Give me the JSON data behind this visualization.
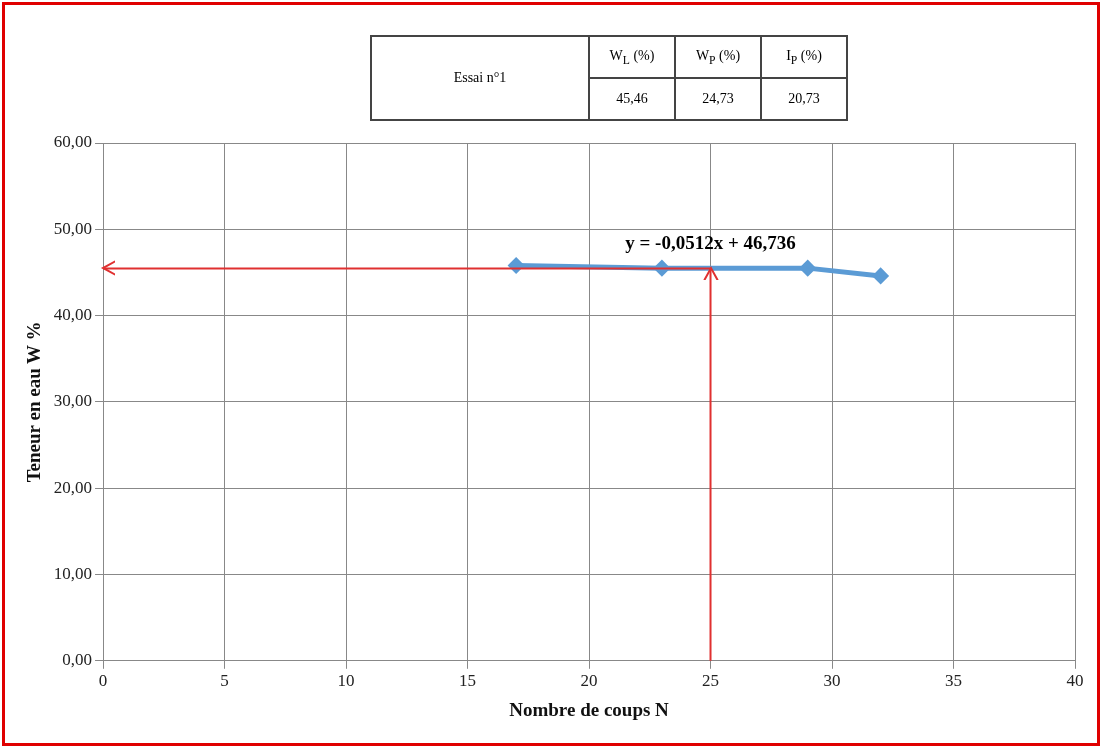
{
  "chart_data": {
    "type": "line",
    "xlabel": "Nombre de coups N",
    "ylabel": "Teneur en eau W %",
    "x": [
      17,
      23,
      29,
      32
    ],
    "series": [
      {
        "color": "#5b9bd5",
        "values": [
          45.8,
          45.5,
          45.5,
          44.6
        ]
      }
    ],
    "marker": "diamond",
    "xlim": [
      0,
      40
    ],
    "xticks": [
      0,
      5,
      10,
      15,
      20,
      25,
      30,
      35,
      40
    ],
    "ylim": [
      0,
      60
    ],
    "yticks": [
      {
        "value": 0,
        "label": "0,00"
      },
      {
        "value": 10,
        "label": "10,00"
      },
      {
        "value": 20,
        "label": "20,00"
      },
      {
        "value": 30,
        "label": "30,00"
      },
      {
        "value": 40,
        "label": "40,00"
      },
      {
        "value": 50,
        "label": "50,00"
      },
      {
        "value": 60,
        "label": "60,00"
      }
    ],
    "grid": true,
    "ref_lines": [
      {
        "axis": "y",
        "value": 45.46,
        "color": "#e03030"
      },
      {
        "axis": "x",
        "value": 25,
        "color": "#e03030"
      }
    ],
    "annotations": [
      "y = -0,0512x + 46,736",
      "Essai n°1",
      "W$_{L}$ (%)",
      "W$_{P}$ (%)",
      "I$_{P}$ (%)",
      "45,46",
      "24,73",
      "20,73"
    ]
  }
}
